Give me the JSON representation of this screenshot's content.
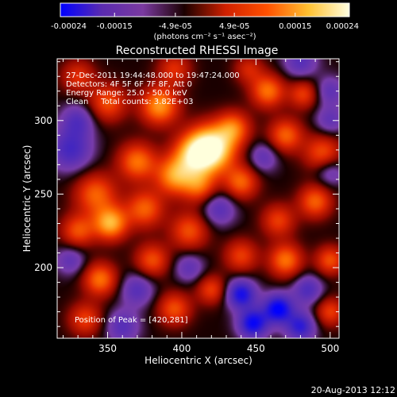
{
  "chart_data": {
    "type": "heatmap",
    "title": "Reconstructed RHESSI Image",
    "xlabel": "Heliocentric X (arcsec)",
    "ylabel": "Heliocentric Y (arcsec)",
    "xlim": [
      316,
      506
    ],
    "ylim": [
      152,
      342
    ],
    "xticks": [
      350,
      400,
      450,
      500
    ],
    "yticks": [
      200,
      250,
      300
    ],
    "colorbar": {
      "range": [
        -0.00024,
        0.00024
      ],
      "ticks": [
        -0.00024,
        -0.00015,
        -4.9e-05,
        4.9e-05,
        0.00015,
        0.00024
      ],
      "tick_labels": [
        "-0.00024",
        "-0.00015",
        "-4.9e-05",
        "4.9e-05",
        "0.00015",
        "0.00024"
      ],
      "unit_label": "(photons cm⁻² s⁻¹ asec⁻²)",
      "colors": [
        "#0000ff",
        "#5a2bb0",
        "#7a3aa0",
        "#1a0000",
        "#d02000",
        "#ff5000",
        "#ffc030",
        "#ffffe0"
      ]
    },
    "sources": [
      {
        "x": 420,
        "y": 281,
        "amp": 1.0,
        "sigma": 11
      },
      {
        "x": 408,
        "y": 276,
        "amp": 0.6,
        "sigma": 10
      },
      {
        "x": 435,
        "y": 295,
        "amp": 0.5,
        "sigma": 8
      },
      {
        "x": 385,
        "y": 310,
        "amp": 0.65,
        "sigma": 9
      },
      {
        "x": 350,
        "y": 312,
        "amp": 0.45,
        "sigma": 9
      },
      {
        "x": 395,
        "y": 262,
        "amp": 0.6,
        "sigma": 9
      },
      {
        "x": 412,
        "y": 255,
        "amp": 0.45,
        "sigma": 8
      },
      {
        "x": 370,
        "y": 272,
        "amp": 0.55,
        "sigma": 9
      },
      {
        "x": 342,
        "y": 250,
        "amp": 0.5,
        "sigma": 10
      },
      {
        "x": 352,
        "y": 230,
        "amp": 0.7,
        "sigma": 8
      },
      {
        "x": 330,
        "y": 225,
        "amp": 0.45,
        "sigma": 8
      },
      {
        "x": 375,
        "y": 240,
        "amp": 0.5,
        "sigma": 9
      },
      {
        "x": 405,
        "y": 225,
        "amp": 0.45,
        "sigma": 9
      },
      {
        "x": 440,
        "y": 258,
        "amp": 0.5,
        "sigma": 8
      },
      {
        "x": 470,
        "y": 290,
        "amp": 0.5,
        "sigma": 8
      },
      {
        "x": 458,
        "y": 320,
        "amp": 0.55,
        "sigma": 8
      },
      {
        "x": 482,
        "y": 318,
        "amp": 0.4,
        "sigma": 7
      },
      {
        "x": 495,
        "y": 278,
        "amp": 0.45,
        "sigma": 9
      },
      {
        "x": 490,
        "y": 245,
        "amp": 0.5,
        "sigma": 8
      },
      {
        "x": 465,
        "y": 232,
        "amp": 0.4,
        "sigma": 8
      },
      {
        "x": 470,
        "y": 205,
        "amp": 0.55,
        "sigma": 8
      },
      {
        "x": 500,
        "y": 205,
        "amp": 0.45,
        "sigma": 7
      },
      {
        "x": 440,
        "y": 208,
        "amp": 0.4,
        "sigma": 8
      },
      {
        "x": 380,
        "y": 205,
        "amp": 0.45,
        "sigma": 8
      },
      {
        "x": 345,
        "y": 192,
        "amp": 0.55,
        "sigma": 8
      },
      {
        "x": 335,
        "y": 165,
        "amp": 0.4,
        "sigma": 8
      },
      {
        "x": 395,
        "y": 172,
        "amp": 0.45,
        "sigma": 8
      },
      {
        "x": 420,
        "y": 185,
        "amp": 0.4,
        "sigma": 7
      },
      {
        "x": 500,
        "y": 170,
        "amp": 0.4,
        "sigma": 7
      },
      {
        "x": 330,
        "y": 330,
        "amp": 0.35,
        "sigma": 8
      },
      {
        "x": 395,
        "y": 335,
        "amp": 0.35,
        "sigma": 8
      },
      {
        "x": 445,
        "y": 335,
        "amp": 0.3,
        "sigma": 7
      },
      {
        "x": 325,
        "y": 280,
        "amp": -0.45,
        "sigma": 10
      },
      {
        "x": 330,
        "y": 300,
        "amp": -0.35,
        "sigma": 8
      },
      {
        "x": 425,
        "y": 240,
        "amp": -0.35,
        "sigma": 8
      },
      {
        "x": 455,
        "y": 275,
        "amp": -0.3,
        "sigma": 7
      },
      {
        "x": 480,
        "y": 340,
        "amp": -0.35,
        "sigma": 8
      },
      {
        "x": 500,
        "y": 320,
        "amp": -0.3,
        "sigma": 7
      },
      {
        "x": 500,
        "y": 300,
        "amp": -0.3,
        "sigma": 7
      },
      {
        "x": 440,
        "y": 182,
        "amp": -0.65,
        "sigma": 7
      },
      {
        "x": 465,
        "y": 172,
        "amp": -0.75,
        "sigma": 7
      },
      {
        "x": 448,
        "y": 162,
        "amp": -0.7,
        "sigma": 7
      },
      {
        "x": 480,
        "y": 160,
        "amp": -0.55,
        "sigma": 7
      },
      {
        "x": 485,
        "y": 185,
        "amp": -0.4,
        "sigma": 7
      },
      {
        "x": 370,
        "y": 185,
        "amp": -0.35,
        "sigma": 8
      },
      {
        "x": 360,
        "y": 160,
        "amp": -0.35,
        "sigma": 8
      },
      {
        "x": 405,
        "y": 200,
        "amp": -0.3,
        "sigma": 7
      },
      {
        "x": 325,
        "y": 205,
        "amp": -0.3,
        "sigma": 7
      },
      {
        "x": 500,
        "y": 265,
        "amp": -0.3,
        "sigma": 7
      }
    ],
    "annotations": {
      "line1": "27-Dec-2011 19:44:48.000 to 19:47:24.000",
      "line2": "Detectors: 4F 5F 6F 7F 8F, Att 0",
      "line3": "Energy Range: 25.0 - 50.0 keV",
      "line4": "Clean     Total counts: 3.82E+03",
      "peak": "Position of Peak = [420,281]"
    }
  },
  "footer": {
    "timestamp": "20-Aug-2013 12:12"
  }
}
